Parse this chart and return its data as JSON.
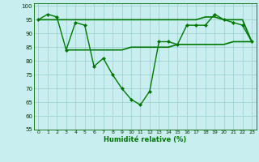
{
  "line1_x": [
    0,
    1,
    2,
    3,
    4,
    5,
    6,
    7,
    8,
    9,
    10,
    11,
    12,
    13,
    14,
    15,
    16,
    17,
    18,
    19,
    20,
    21,
    22,
    23
  ],
  "line1_y": [
    95,
    97,
    96,
    84,
    94,
    93,
    78,
    81,
    75,
    70,
    66,
    64,
    69,
    87,
    87,
    86,
    93,
    93,
    93,
    97,
    95,
    94,
    93,
    87
  ],
  "line2_x": [
    3,
    5,
    6,
    7,
    8,
    9,
    10,
    11,
    12,
    13,
    14,
    15,
    16,
    17,
    18,
    19,
    20,
    21,
    22,
    23
  ],
  "line2_y": [
    84,
    84,
    84,
    84,
    84,
    84,
    85,
    85,
    85,
    85,
    85,
    86,
    86,
    86,
    86,
    86,
    86,
    87,
    87,
    87
  ],
  "line3_x": [
    0,
    1,
    2,
    3,
    4,
    5,
    6,
    7,
    8,
    9,
    10,
    11,
    12,
    13,
    14,
    15,
    16,
    17,
    18,
    19,
    20,
    21,
    22,
    23
  ],
  "line3_y": [
    95,
    95,
    95,
    95,
    95,
    95,
    95,
    95,
    95,
    95,
    95,
    95,
    95,
    95,
    95,
    95,
    95,
    95,
    96,
    96,
    95,
    95,
    95,
    87
  ],
  "line_color": "#007700",
  "bg_color": "#c8eef0",
  "grid_color": "#99cccc",
  "xlabel": "Humidité relative (%)",
  "ylim": [
    55,
    101
  ],
  "xlim": [
    -0.5,
    23.5
  ],
  "yticks": [
    55,
    60,
    65,
    70,
    75,
    80,
    85,
    90,
    95,
    100
  ],
  "xticks": [
    0,
    1,
    2,
    3,
    4,
    5,
    6,
    7,
    8,
    9,
    10,
    11,
    12,
    13,
    14,
    15,
    16,
    17,
    18,
    19,
    20,
    21,
    22,
    23
  ]
}
